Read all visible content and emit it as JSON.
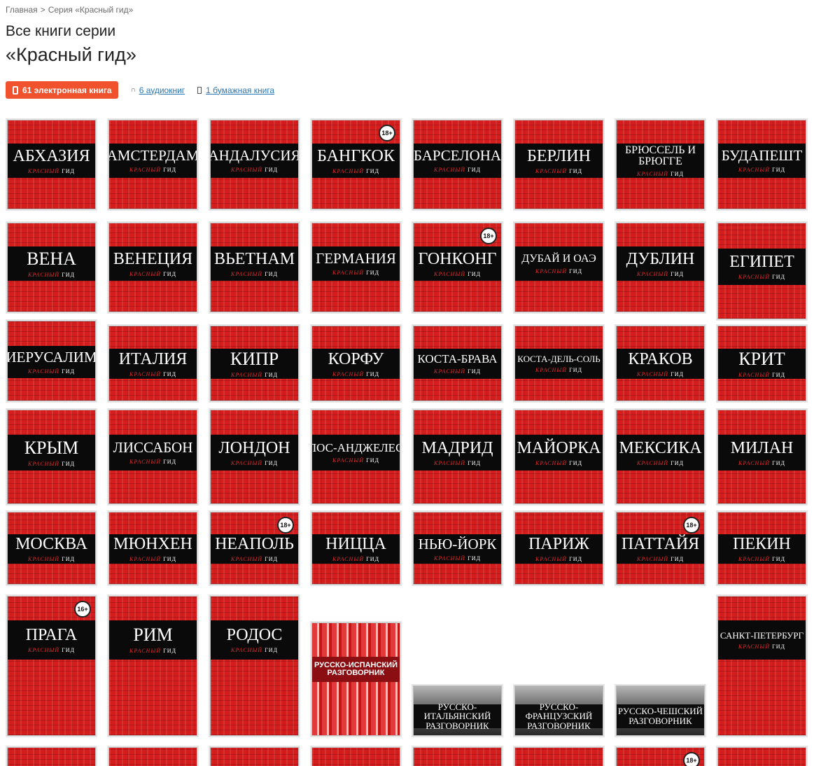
{
  "breadcrumb": {
    "home": "Главная",
    "separator": ">",
    "current": "Серия «Красный гид»"
  },
  "heading": {
    "line1": "Все книги серии",
    "line2": "«Красный гид»"
  },
  "filters": {
    "ebooks": "61 электронная книга",
    "audio": "6 аудиокниг",
    "paper": "1 бумажная книга"
  },
  "cover_subtitle": "КРАСНЫЙ ГИД",
  "books": [
    {
      "title": "АБХАЗИЯ"
    },
    {
      "title": "АМСТЕРДАМ"
    },
    {
      "title": "АНДАЛУСИЯ"
    },
    {
      "title": "БАНГКОК",
      "age": "18+"
    },
    {
      "title": "БАРСЕЛОНА"
    },
    {
      "title": "БЕРЛИН"
    },
    {
      "title": "БРЮССЕЛЬ И БРЮГГЕ"
    },
    {
      "title": "БУДАПЕШТ"
    },
    {
      "title": "ВЕНА"
    },
    {
      "title": "ВЕНЕЦИЯ"
    },
    {
      "title": "ВЬЕТНАМ"
    },
    {
      "title": "ГЕРМАНИЯ"
    },
    {
      "title": "ГОНКОНГ",
      "age": "18+"
    },
    {
      "title": "ДУБАЙ И ОАЭ"
    },
    {
      "title": "ДУБЛИН"
    },
    {
      "title": "ЕГИПЕТ"
    },
    {
      "title": "ИЕРУСАЛИМ"
    },
    {
      "title": "ИТАЛИЯ"
    },
    {
      "title": "КИПР"
    },
    {
      "title": "КОРФУ"
    },
    {
      "title": "КОСТА-БРАВА"
    },
    {
      "title": "КОСТА-ДЕЛЬ-СОЛЬ"
    },
    {
      "title": "КРАКОВ"
    },
    {
      "title": "КРИТ"
    },
    {
      "title": "КРЫМ"
    },
    {
      "title": "ЛИССАБОН"
    },
    {
      "title": "ЛОНДОН"
    },
    {
      "title": "ЛОС-АНДЖЕЛЕС"
    },
    {
      "title": "МАДРИД"
    },
    {
      "title": "МАЙОРКА"
    },
    {
      "title": "МЕКСИКА"
    },
    {
      "title": "МИЛАН"
    },
    {
      "title": "МОСКВА"
    },
    {
      "title": "МЮНХЕН"
    },
    {
      "title": "НЕАПОЛЬ",
      "age": "18+"
    },
    {
      "title": "НИЦЦА"
    },
    {
      "title": "НЬЮ-ЙОРК"
    },
    {
      "title": "ПАРИЖ"
    },
    {
      "title": "ПАТТАЙЯ",
      "age": "18+"
    },
    {
      "title": "ПЕКИН"
    },
    {
      "title": "ПРАГА",
      "age": "16+"
    },
    {
      "title": "РИМ"
    },
    {
      "title": "РОДОС"
    },
    {
      "title": "РУССКО-ИСПАНСКИЙ РАЗГОВОРНИК"
    },
    {
      "title": "РУССКО-ИТАЛЬЯНСКИЙ РАЗГОВОРНИК"
    },
    {
      "title": "РУССКО-ФРАНЦУЗСКИЙ РАЗГОВОРНИК"
    },
    {
      "title": "РУССКО-ЧЕШСКИЙ РАЗГОВОРНИК"
    },
    {
      "title": "САНКТ-ПЕТЕРБУРГ"
    },
    {
      "title": ""
    },
    {
      "title": ""
    },
    {
      "title": ""
    },
    {
      "title": ""
    },
    {
      "title": ""
    },
    {
      "title": ""
    },
    {
      "title": "",
      "age": "18+"
    },
    {
      "title": ""
    }
  ]
}
